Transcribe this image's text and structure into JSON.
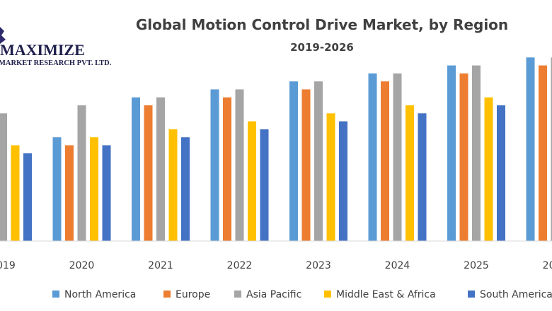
{
  "logo": {
    "line1": "MAXIMIZE",
    "line2": "MARKET RESEARCH PVT. LTD."
  },
  "colors": {
    "North America": "#5b9bd5",
    "Europe": "#ed7d31",
    "Asia Pacific": "#a5a5a5",
    "Middle East & Africa": "#ffc000",
    "South America": "#4472c4"
  },
  "chart_data": {
    "type": "bar",
    "title": "Global Motion Control Drive Market, by Region",
    "subtitle": "2019-2026",
    "categories": [
      "2019",
      "2020",
      "2021",
      "2022",
      "2023",
      "2024",
      "2025",
      "2026"
    ],
    "series": [
      {
        "name": "North America",
        "values": [
          6.0,
          6.5,
          9.0,
          9.5,
          10.0,
          10.5,
          11.0,
          11.5
        ]
      },
      {
        "name": "Europe",
        "values": [
          5.5,
          6.0,
          8.5,
          9.0,
          9.5,
          10.0,
          10.5,
          11.0
        ]
      },
      {
        "name": "Asia Pacific",
        "values": [
          8.0,
          8.5,
          9.0,
          9.5,
          10.0,
          10.5,
          11.0,
          11.5
        ]
      },
      {
        "name": "Middle East & Africa",
        "values": [
          6.0,
          6.5,
          7.0,
          7.5,
          8.0,
          8.5,
          9.0,
          9.5
        ]
      },
      {
        "name": "South America",
        "values": [
          5.5,
          6.0,
          6.5,
          7.0,
          7.5,
          8.0,
          8.5,
          9.0
        ]
      }
    ],
    "ylim": [
      0,
      12
    ],
    "grid": false,
    "legend": "bottom",
    "xlabel": "",
    "ylabel": ""
  }
}
